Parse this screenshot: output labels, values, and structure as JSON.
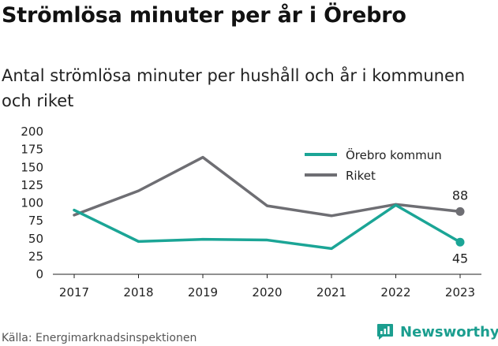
{
  "header": {
    "title": "Strömlösa minuter per år i Örebro",
    "subtitle": "Antal strömlösa minuter per hushåll och år i kommunen och riket"
  },
  "footer": {
    "source": "Källa: Energimarknadsinspektionen",
    "brand": "Newsworthy"
  },
  "colors": {
    "orebro": "#1ba596",
    "riket": "#6e6e73",
    "brand": "#1b9e8f"
  },
  "chart_data": {
    "type": "line",
    "x": [
      "2017",
      "2018",
      "2019",
      "2020",
      "2021",
      "2022",
      "2023"
    ],
    "ylim": [
      0,
      200
    ],
    "yticks": [
      "0",
      "25",
      "50",
      "75",
      "100",
      "125",
      "150",
      "175",
      "200"
    ],
    "grid": false,
    "legend": "top-right",
    "series": [
      {
        "name": "Örebro kommun",
        "values": [
          90,
          46,
          49,
          48,
          36,
          97,
          45
        ],
        "end_label": "45"
      },
      {
        "name": "Riket",
        "values": [
          83,
          117,
          164,
          96,
          82,
          98,
          88
        ],
        "end_label": "88"
      }
    ]
  }
}
